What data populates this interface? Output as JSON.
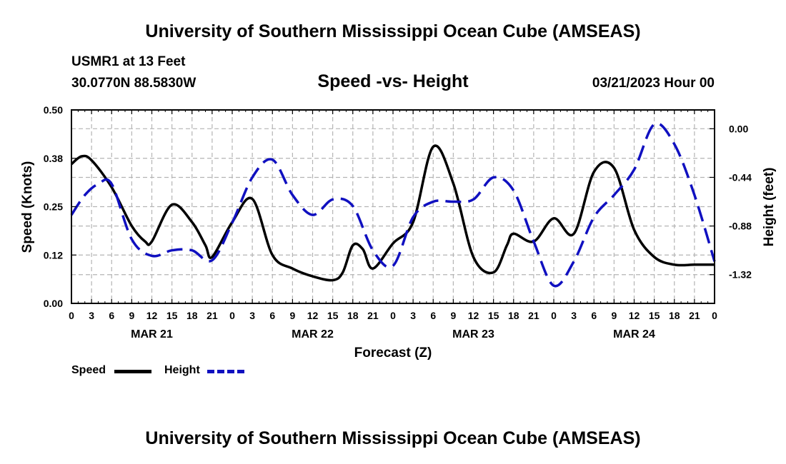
{
  "header": {
    "title": "University of Southern Mississippi Ocean Cube (AMSEAS)",
    "station": "USMR1 at 13 Feet",
    "coordinates": "30.0770N  88.5830W",
    "subtitle": "Speed -vs- Height",
    "datetime": "03/21/2023 Hour 00"
  },
  "footer": {
    "title": "University of Southern Mississippi Ocean Cube (AMSEAS)"
  },
  "legend": {
    "speed_label": "Speed",
    "height_label": "Height"
  },
  "colors": {
    "speed": "#000000",
    "height": "#1010c0",
    "grid": "#b4b4b4"
  },
  "chart_data": {
    "type": "line",
    "title": "Speed -vs- Height",
    "xlabel": "Forecast (Z)",
    "ylabel": "Speed (Knots)",
    "y2label": "Height (feet)",
    "xlim": [
      0,
      96
    ],
    "ylim": [
      0,
      0.5
    ],
    "y2lim": [
      -1.58,
      0.17
    ],
    "x_ticks": [
      0,
      3,
      6,
      9,
      12,
      15,
      18,
      21,
      24,
      27,
      30,
      33,
      36,
      39,
      42,
      45,
      48,
      51,
      54,
      57,
      60,
      63,
      66,
      69,
      72,
      75,
      78,
      81,
      84,
      87,
      90,
      93,
      96
    ],
    "x_tick_labels": [
      "0",
      "3",
      "6",
      "9",
      "12",
      "15",
      "18",
      "21",
      "0",
      "3",
      "6",
      "9",
      "12",
      "15",
      "18",
      "21",
      "0",
      "3",
      "6",
      "9",
      "12",
      "15",
      "18",
      "21",
      "0",
      "3",
      "6",
      "9",
      "12",
      "15",
      "18",
      "21",
      "0"
    ],
    "date_labels": [
      {
        "label": "MAR 21",
        "x": 12
      },
      {
        "label": "MAR 22",
        "x": 36
      },
      {
        "label": "MAR 23",
        "x": 60
      },
      {
        "label": "MAR 24",
        "x": 84
      }
    ],
    "y_ticks": [
      0.0,
      0.125,
      0.25,
      0.375,
      0.5
    ],
    "y_tick_labels": [
      "0.00",
      "0.12",
      "0.25",
      "0.38",
      "0.50"
    ],
    "y2_ticks": [
      0.0,
      -0.44,
      -0.88,
      -1.32
    ],
    "y2_tick_labels": [
      "0.00",
      "-0.44",
      "-0.88",
      "-1.32"
    ],
    "series": [
      {
        "name": "Speed",
        "axis": "left",
        "style": "solid",
        "x": [
          0,
          1.5,
          3,
          6,
          9,
          11,
          12,
          15,
          18,
          20,
          21,
          24,
          27,
          30,
          33,
          36,
          39,
          40.5,
          42,
          43.5,
          45,
          48,
          51,
          54,
          57,
          60,
          63,
          65,
          66,
          69,
          72,
          75,
          78,
          81,
          84,
          87,
          90,
          93,
          96
        ],
        "values": [
          0.36,
          0.38,
          0.37,
          0.3,
          0.2,
          0.16,
          0.16,
          0.255,
          0.21,
          0.15,
          0.12,
          0.21,
          0.27,
          0.125,
          0.09,
          0.07,
          0.06,
          0.08,
          0.15,
          0.14,
          0.09,
          0.155,
          0.21,
          0.405,
          0.31,
          0.12,
          0.08,
          0.15,
          0.18,
          0.16,
          0.22,
          0.18,
          0.34,
          0.35,
          0.19,
          0.12,
          0.1,
          0.1,
          0.1
        ]
      },
      {
        "name": "Height",
        "axis": "right",
        "style": "dashed",
        "x": [
          0,
          2,
          4,
          6,
          9,
          12,
          15,
          18,
          21,
          24,
          27,
          30,
          33,
          36,
          39,
          42,
          45,
          48,
          51,
          54,
          57,
          60,
          63,
          66,
          69,
          72,
          75,
          78,
          81,
          84,
          87,
          90,
          93,
          96
        ],
        "values": [
          -0.78,
          -0.6,
          -0.5,
          -0.5,
          -1.0,
          -1.15,
          -1.1,
          -1.1,
          -1.19,
          -0.85,
          -0.44,
          -0.28,
          -0.6,
          -0.78,
          -0.64,
          -0.7,
          -1.1,
          -1.24,
          -0.8,
          -0.66,
          -0.66,
          -0.64,
          -0.44,
          -0.56,
          -1.02,
          -1.42,
          -1.2,
          -0.8,
          -0.6,
          -0.37,
          0.04,
          -0.14,
          -0.6,
          -1.2
        ]
      }
    ]
  }
}
